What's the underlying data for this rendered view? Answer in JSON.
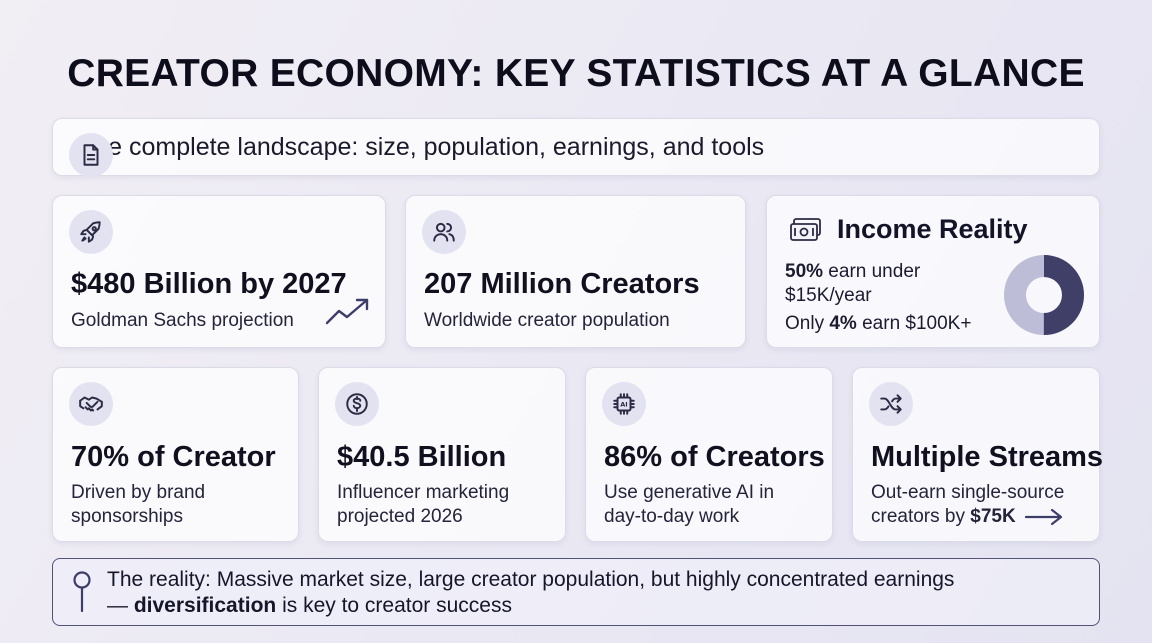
{
  "title": "CREATOR ECONOMY: KEY STATISTICS AT A GLANCE",
  "subtitle": "The complete landscape: size, population, earnings, and tools",
  "market": {
    "value": "$480 Billion by 2027",
    "desc": "Goldman Sachs projection",
    "icon": "rocket-icon"
  },
  "population": {
    "value": "207 Million Creators",
    "desc": "Worldwide creator population",
    "icon": "users-icon"
  },
  "income": {
    "title": "Income Reality",
    "line1_bold": "50%",
    "line1_rest": " earn under",
    "line2": "$15K/year",
    "line3_pre": "Only ",
    "line3_bold": "4%",
    "line3_post": " earn $100K+",
    "donut_fraction_dark": 0.5,
    "colors": {
      "dark": "#3f3f68",
      "light": "#bdbdd8"
    }
  },
  "cards": [
    {
      "value": "70% of Creator",
      "desc1": "Driven by brand",
      "desc2": "sponsorships",
      "icon": "handshake-icon"
    },
    {
      "value": "$40.5 Billion",
      "desc1": "Influencer marketing",
      "desc2": "projected 2026",
      "icon": "dollar-icon"
    },
    {
      "value": "86% of Creators",
      "desc1": "Use generative AI in",
      "desc2": "day-to-day work",
      "icon": "ai-chip-icon"
    },
    {
      "value": "Multiple Streams",
      "desc1": "Out-earn single-source",
      "desc2_pre": "creators by ",
      "desc2_bold": "$75K",
      "icon": "shuffle-icon"
    }
  ],
  "bottom": {
    "text1": "The reality: Massive market size, large creator population, but highly concentrated earnings",
    "text2_pre": "— ",
    "text2_bold": "diversification",
    "text2_post": " is key to creator success"
  }
}
